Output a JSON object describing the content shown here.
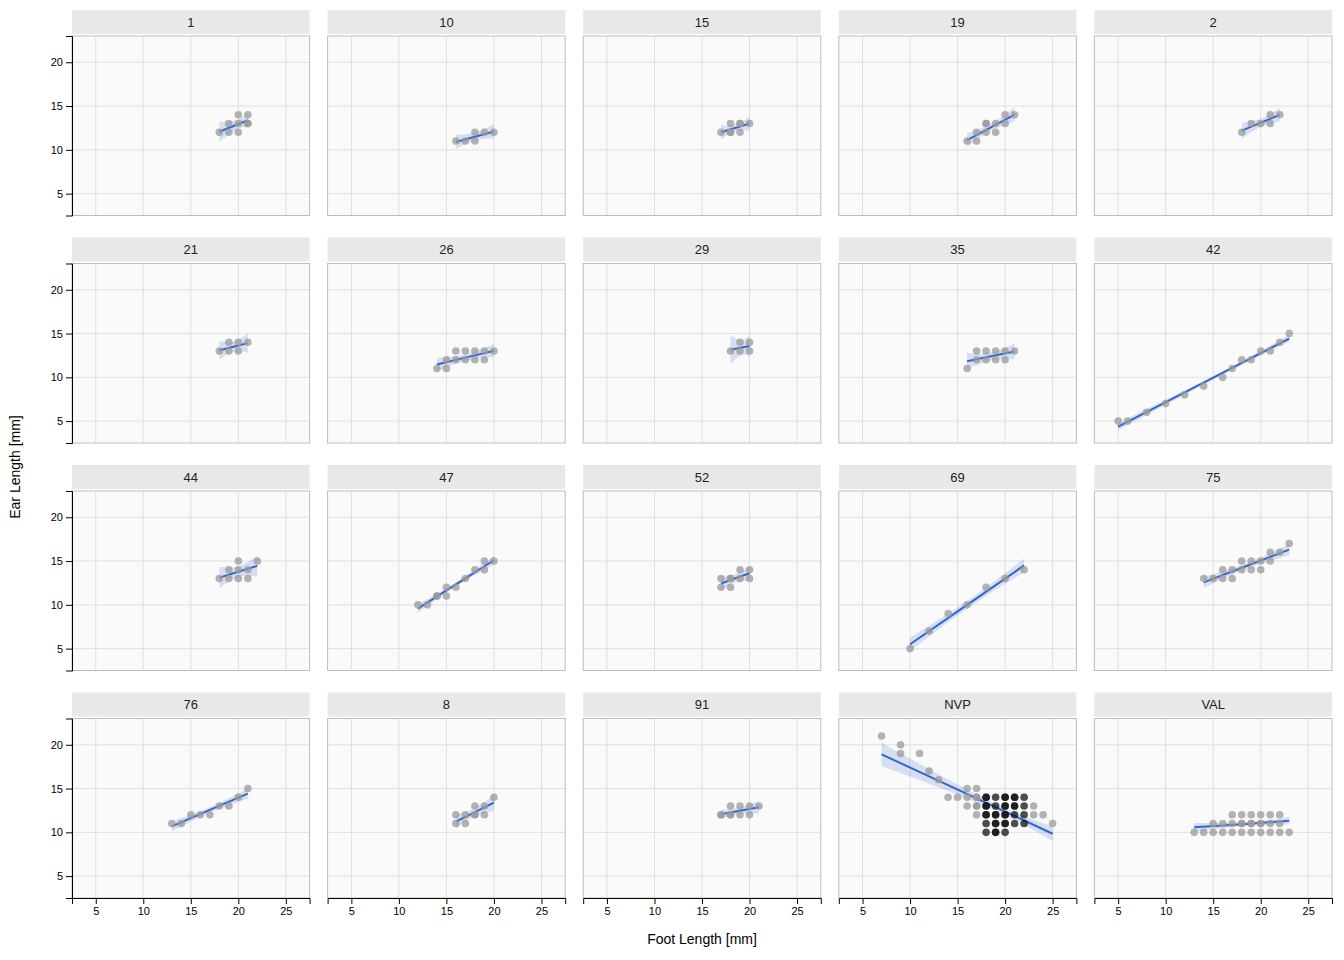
{
  "chart_data": {
    "type": "scatter",
    "xlabel": "Foot Length [mm]",
    "ylabel": "Ear Length [mm]",
    "xlim": [
      2.5,
      27.5
    ],
    "ylim": [
      2.5,
      23
    ],
    "xticks": [
      5,
      10,
      15,
      20,
      25
    ],
    "yticks": [
      5,
      10,
      15,
      20
    ],
    "grid": true,
    "color": "#999999",
    "series": [
      {
        "name": "1",
        "x": [
          18,
          19,
          19,
          20,
          20,
          20,
          21,
          21,
          21
        ],
        "values": [
          12,
          12,
          13,
          12,
          13,
          14,
          13,
          13,
          14
        ],
        "fit": {
          "color": "#3366CC",
          "x": [
            18,
            19.889,
            21
          ],
          "values": [
            12.063,
            12.889,
            13.375
          ],
          "lower": [
            10.92,
            12.357,
            12.577
          ],
          "upper": [
            13.205,
            13.421,
            14.173
          ]
        }
      },
      {
        "name": "10",
        "x": [
          16,
          17,
          18,
          18,
          19,
          20
        ],
        "values": [
          11,
          11,
          11,
          12,
          12,
          12
        ],
        "fit": {
          "color": "#3366CC",
          "x": [
            16,
            18,
            20
          ],
          "values": [
            10.9,
            11.5,
            12.1
          ],
          "lower": [
            10.091,
            11.061,
            11.291
          ],
          "upper": [
            11.709,
            11.939,
            12.909
          ]
        }
      },
      {
        "name": "15",
        "x": [
          17,
          18,
          18,
          18,
          19,
          19,
          19,
          20
        ],
        "values": [
          12,
          12,
          12,
          13,
          12,
          13,
          13,
          13
        ],
        "fit": {
          "color": "#3366CC",
          "x": [
            17,
            18.5,
            20
          ],
          "values": [
            12,
            12.5,
            13
          ],
          "lower": [
            11.184,
            12.092,
            12.184
          ],
          "upper": [
            12.816,
            12.908,
            13.816
          ]
        }
      },
      {
        "name": "19",
        "x": [
          16,
          17,
          17,
          18,
          18,
          18,
          19,
          19,
          20,
          20,
          21
        ],
        "values": [
          11,
          11,
          12,
          12,
          13,
          13,
          12,
          13,
          13,
          14,
          14
        ],
        "fit": {
          "color": "#3366CC",
          "x": [
            16,
            18.455,
            21
          ],
          "values": [
            11.112,
            12.545,
            14.032
          ],
          "lower": [
            10.336,
            12.153,
            13.235
          ],
          "upper": [
            11.888,
            12.938,
            14.83
          ]
        }
      },
      {
        "name": "2",
        "x": [
          18,
          19,
          20,
          21,
          21,
          22
        ],
        "values": [
          12,
          13,
          13,
          13,
          14,
          14
        ],
        "fit": {
          "color": "#3366CC",
          "x": [
            18,
            20.167,
            22
          ],
          "values": [
            12.2,
            13.167,
            13.985
          ],
          "lower": [
            11.315,
            12.7,
            13.196
          ],
          "upper": [
            13.085,
            13.633,
            14.773
          ]
        }
      },
      {
        "name": "21",
        "x": [
          18,
          19,
          19,
          20,
          20,
          21
        ],
        "values": [
          13,
          13,
          14,
          13,
          14,
          14
        ],
        "fit": {
          "color": "#3366CC",
          "x": [
            18,
            19.5,
            21
          ],
          "values": [
            13.091,
            13.5,
            13.909
          ],
          "lower": [
            11.991,
            12.908,
            12.809
          ],
          "upper": [
            14.191,
            14.092,
            15.009
          ]
        }
      },
      {
        "name": "26",
        "x": [
          14,
          15,
          15,
          16,
          16,
          17,
          17,
          18,
          18,
          19,
          19,
          20
        ],
        "values": [
          11,
          11,
          12,
          12,
          13,
          12,
          13,
          12,
          13,
          12,
          13,
          13
        ],
        "fit": {
          "color": "#3366CC",
          "x": [
            14,
            17,
            20
          ],
          "values": [
            11.461,
            12.25,
            13.039
          ],
          "lower": [
            10.702,
            11.863,
            12.281
          ],
          "upper": [
            12.219,
            12.637,
            13.798
          ]
        }
      },
      {
        "name": "29",
        "x": [
          18,
          19,
          19,
          20,
          20
        ],
        "values": [
          13,
          13,
          14,
          13,
          14
        ],
        "fit": {
          "color": "#3366CC",
          "x": [
            18,
            19.2,
            20
          ],
          "values": [
            13.143,
            13.4,
            13.571
          ],
          "lower": [
            11.536,
            12.55,
            12.327
          ],
          "upper": [
            14.75,
            14.25,
            14.816
          ]
        }
      },
      {
        "name": "35",
        "x": [
          16,
          17,
          17,
          18,
          18,
          19,
          19,
          20,
          20,
          21
        ],
        "values": [
          11,
          12,
          13,
          12,
          13,
          12,
          13,
          12,
          13,
          13
        ],
        "fit": {
          "color": "#3366CC",
          "x": [
            16,
            18.5,
            21
          ],
          "values": [
            11.844,
            12.4,
            12.956
          ],
          "lower": [
            10.936,
            11.932,
            12.047
          ],
          "upper": [
            12.753,
            12.868,
            13.864
          ]
        }
      },
      {
        "name": "42",
        "x": [
          5,
          6,
          8,
          10,
          12,
          14,
          16,
          17,
          18,
          19,
          20,
          21,
          22,
          23
        ],
        "values": [
          5,
          5,
          6,
          7,
          8,
          9,
          10,
          11,
          12,
          12,
          13,
          13,
          14,
          15
        ],
        "fit": {
          "color": "#3366CC",
          "x": [
            5,
            15.071,
            23
          ],
          "values": [
            4.373,
            10,
            14.43
          ],
          "lower": [
            3.944,
            9.786,
            14.067
          ],
          "upper": [
            4.802,
            10.214,
            14.792
          ]
        }
      },
      {
        "name": "44",
        "x": [
          18,
          19,
          19,
          20,
          20,
          20,
          21,
          21,
          22
        ],
        "values": [
          13,
          13,
          14,
          13,
          14,
          15,
          13,
          14,
          15
        ],
        "fit": {
          "color": "#3366CC",
          "x": [
            18,
            20,
            22
          ],
          "values": [
            13.111,
            13.778,
            14.444
          ],
          "lower": [
            11.887,
            13.166,
            13.22
          ],
          "upper": [
            14.336,
            14.39,
            15.669
          ]
        }
      },
      {
        "name": "47",
        "x": [
          12,
          13,
          14,
          14,
          15,
          15,
          16,
          17,
          18,
          19,
          19,
          20
        ],
        "values": [
          10,
          10,
          11,
          11,
          11,
          12,
          12,
          13,
          14,
          14,
          15,
          15
        ],
        "fit": {
          "color": "#3366CC",
          "x": [
            12,
            16,
            20
          ],
          "values": [
            9.577,
            12.333,
            15.09
          ],
          "lower": [
            9.101,
            12.083,
            14.615
          ],
          "upper": [
            10.052,
            12.584,
            15.565
          ]
        }
      },
      {
        "name": "52",
        "x": [
          17,
          17,
          18,
          18,
          18,
          19,
          19,
          20,
          20
        ],
        "values": [
          12,
          13,
          12,
          13,
          13,
          13,
          14,
          13,
          14
        ],
        "fit": {
          "color": "#3366CC",
          "x": [
            17,
            18.444,
            20
          ],
          "values": [
            12.435,
            13,
            13.609
          ],
          "lower": [
            11.652,
            12.535,
            12.786
          ],
          "upper": [
            13.218,
            13.465,
            14.431
          ]
        }
      },
      {
        "name": "69",
        "x": [
          10,
          12,
          14,
          16,
          18,
          20,
          22
        ],
        "values": [
          5,
          7,
          9,
          10,
          12,
          13,
          14
        ],
        "fit": {
          "color": "#3366CC",
          "x": [
            10,
            16,
            22
          ],
          "values": [
            5.5,
            10,
            14.5
          ],
          "lower": [
            4.717,
            9.565,
            13.717
          ],
          "upper": [
            6.283,
            10.435,
            15.283
          ]
        }
      },
      {
        "name": "75",
        "x": [
          14,
          15,
          16,
          16,
          17,
          17,
          18,
          18,
          19,
          19,
          20,
          20,
          21,
          21,
          22,
          23
        ],
        "values": [
          13,
          13,
          13,
          14,
          13,
          14,
          14,
          15,
          14,
          15,
          14,
          15,
          15,
          16,
          16,
          17
        ],
        "fit": {
          "color": "#3366CC",
          "x": [
            14,
            18.5,
            23
          ],
          "values": [
            12.57,
            14.438,
            16.305
          ],
          "lower": [
            11.929,
            14.126,
            15.664
          ],
          "upper": [
            13.211,
            14.749,
            16.946
          ]
        }
      },
      {
        "name": "76",
        "x": [
          13,
          14,
          15,
          16,
          17,
          18,
          19,
          20,
          21
        ],
        "values": [
          11,
          11,
          12,
          12,
          12,
          13,
          13,
          14,
          15
        ],
        "fit": {
          "color": "#3366CC",
          "x": [
            13,
            17,
            21
          ],
          "values": [
            10.689,
            12.556,
            14.422
          ],
          "lower": [
            10.098,
            12.235,
            13.832
          ],
          "upper": [
            11.279,
            12.876,
            15.013
          ]
        }
      },
      {
        "name": "8",
        "x": [
          16,
          16,
          17,
          17,
          18,
          18,
          18,
          19,
          19,
          20
        ],
        "values": [
          11,
          12,
          11,
          12,
          12,
          12,
          13,
          12,
          13,
          14
        ],
        "fit": {
          "color": "#3366CC",
          "x": [
            16,
            17.8,
            20
          ],
          "values": [
            11.231,
            12.2,
            13.385
          ],
          "lower": [
            10.437,
            11.748,
            12.469
          ],
          "upper": [
            12.024,
            12.652,
            14.301
          ]
        }
      },
      {
        "name": "91",
        "x": [
          17,
          17,
          18,
          18,
          18,
          19,
          19,
          20,
          20,
          21
        ],
        "values": [
          12,
          12,
          12,
          12,
          13,
          12,
          13,
          12,
          13,
          13
        ],
        "fit": {
          "color": "#3366CC",
          "x": [
            17,
            18.7,
            21
          ],
          "values": [
            12.062,
            12.4,
            12.857
          ],
          "lower": [
            11.49,
            12.058,
            12.148
          ],
          "upper": [
            12.635,
            12.742,
            13.566
          ]
        }
      },
      {
        "name": "NVP",
        "x": [
          7,
          9,
          9,
          11,
          12,
          13,
          14,
          15,
          16,
          16,
          16,
          17,
          17,
          17,
          17,
          17,
          17,
          18,
          18,
          18,
          18,
          18,
          18,
          18,
          18,
          19,
          19,
          19,
          19,
          19,
          19,
          19,
          19,
          20,
          20,
          20,
          20,
          20,
          20,
          20,
          20,
          20,
          21,
          21,
          21,
          21,
          21,
          21,
          22,
          22,
          22,
          22,
          23,
          23,
          24,
          25
        ],
        "values": [
          21,
          19,
          20,
          19,
          17,
          16,
          14,
          14,
          14,
          13,
          15,
          12,
          13,
          14,
          15,
          13,
          14,
          10,
          11,
          12,
          13,
          14,
          13,
          14,
          12,
          10,
          11,
          12,
          13,
          14,
          10,
          11,
          12,
          10,
          11,
          12,
          13,
          14,
          11,
          12,
          13,
          14,
          11,
          12,
          13,
          14,
          13,
          14,
          11,
          12,
          13,
          14,
          12,
          13,
          12,
          11
        ],
        "colors": [
          "#999999",
          "#999999",
          "#999999",
          "#999999",
          "#999999",
          "#999999",
          "#999999",
          "#999999",
          "#999999",
          "#999999",
          "#999999",
          "#999999",
          "#999999",
          "#999999",
          "#999999",
          "#999999",
          "#999999",
          "#111111",
          "#111111",
          "#111111",
          "#111111",
          "#111111",
          "#111111",
          "#111111",
          "#111111",
          "#111111",
          "#111111",
          "#111111",
          "#111111",
          "#111111",
          "#111111",
          "#111111",
          "#111111",
          "#111111",
          "#111111",
          "#111111",
          "#111111",
          "#111111",
          "#111111",
          "#111111",
          "#111111",
          "#111111",
          "#111111",
          "#111111",
          "#111111",
          "#111111",
          "#111111",
          "#111111",
          "#111111",
          "#111111",
          "#111111",
          "#111111",
          "#999999",
          "#999999",
          "#999999",
          "#999999"
        ],
        "fit": {
          "color": "#3366CC",
          "x": [
            7,
            18.304,
            25
          ],
          "values": [
            18.908,
            13.214,
            9.841
          ],
          "lower": [
            17.579,
            12.81,
            8.989
          ],
          "upper": [
            20.238,
            13.618,
            10.693
          ]
        }
      },
      {
        "name": "VAL",
        "x": [
          13,
          14,
          15,
          15,
          16,
          16,
          17,
          17,
          17,
          18,
          18,
          18,
          18,
          19,
          19,
          19,
          19,
          20,
          20,
          20,
          20,
          21,
          21,
          21,
          22,
          22,
          22,
          23
        ],
        "values": [
          10,
          10,
          10,
          11,
          10,
          11,
          10,
          11,
          12,
          10,
          11,
          11,
          12,
          10,
          11,
          11,
          12,
          10,
          11,
          11,
          12,
          10,
          11,
          12,
          10,
          11,
          12,
          10
        ],
        "fit": {
          "color": "#3366CC",
          "x": [
            13,
            18.5,
            23
          ],
          "values": [
            10.577,
            10.964,
            11.316
          ],
          "lower": [
            10.076,
            10.755,
            10.88
          ],
          "upper": [
            11.078,
            11.174,
            11.752
          ]
        }
      }
    ]
  }
}
